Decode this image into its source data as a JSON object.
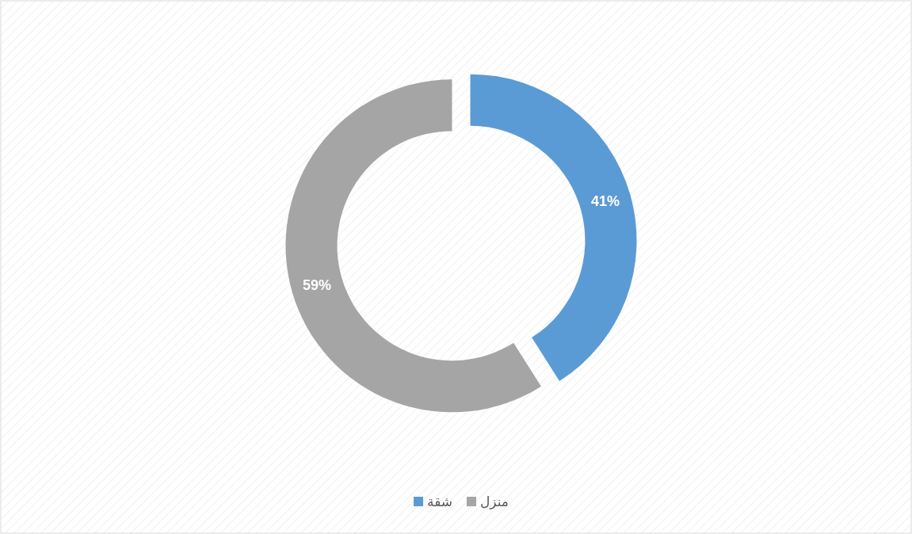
{
  "chart_data": {
    "type": "donut",
    "categories": [
      "شقة",
      "منزل"
    ],
    "values": [
      41,
      59
    ],
    "colors": [
      "#5b9bd5",
      "#a5a5a5"
    ],
    "value_labels": [
      "41%",
      "59%"
    ],
    "legend": "bottom"
  }
}
